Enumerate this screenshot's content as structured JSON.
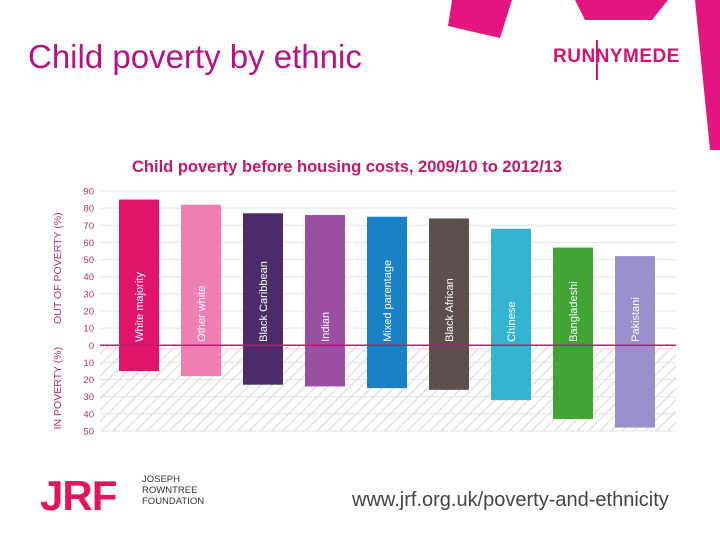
{
  "slide": {
    "title": "Child poverty by ethnic",
    "logo_runnymede": "RUNNYMEDE"
  },
  "footer": {
    "jrf_logo": "JRF",
    "jrf_name_line1": "JOSEPH",
    "jrf_name_line2": "ROWNTREE",
    "jrf_name_line3": "FOUNDATION",
    "url": "www.jrf.org.uk/poverty-and-ethnicity"
  },
  "colors": {
    "title": "#b5137f",
    "accent": "#d4136d",
    "jrf": "#e0145f"
  },
  "chart_data": {
    "type": "bar",
    "title": "Child poverty before housing costs, 2009/10 to 2012/13",
    "ylabel_top": "OUT OF POVERTY (%)",
    "ylabel_bottom": "IN POVERTY (%)",
    "ylim": [
      -50,
      90
    ],
    "yticks": [
      90,
      80,
      70,
      60,
      50,
      40,
      30,
      20,
      10,
      0,
      -10,
      -20,
      -30,
      -40,
      -50
    ],
    "ytick_labels": [
      "90",
      "80",
      "70",
      "60",
      "50",
      "40",
      "30",
      "20",
      "10",
      "0",
      "10",
      "20",
      "30",
      "40",
      "50"
    ],
    "categories": [
      "White majority",
      "Other white",
      "Black Caribbean",
      "Indian",
      "Mixed parentage",
      "Black African",
      "Chinese",
      "Bangladeshi",
      "Pakistani"
    ],
    "out_of_poverty": [
      85,
      82,
      77,
      76,
      75,
      74,
      68,
      57,
      52
    ],
    "in_poverty": [
      15,
      18,
      23,
      24,
      25,
      26,
      32,
      43,
      48
    ],
    "colors": [
      "#e0156a",
      "#f07db4",
      "#4a2d68",
      "#9a4fa3",
      "#1a82c4",
      "#5b504b",
      "#35b4d0",
      "#40a535",
      "#9a8fca"
    ]
  }
}
